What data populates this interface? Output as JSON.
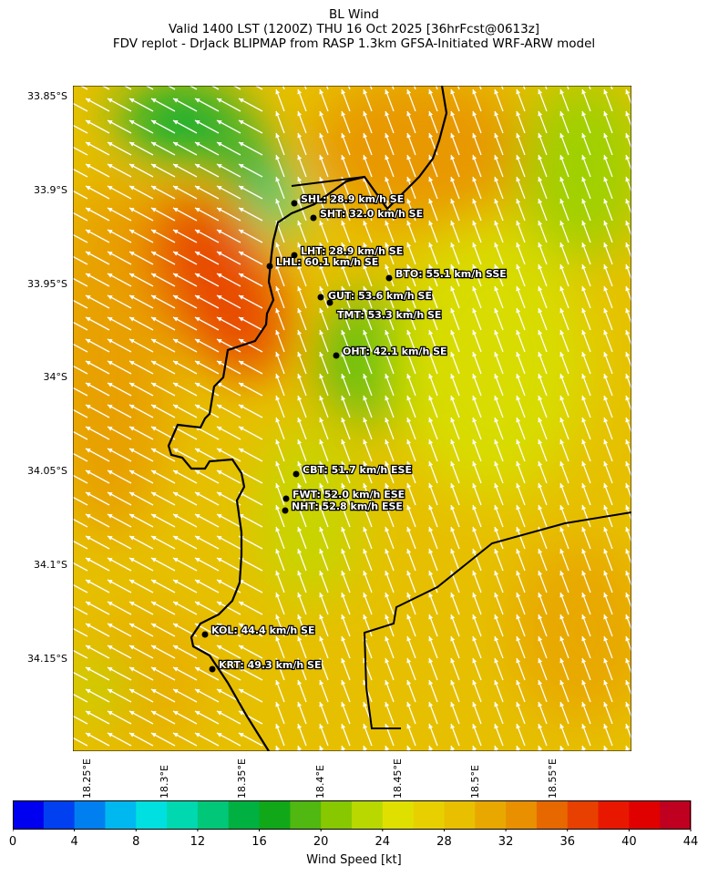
{
  "header": {
    "title": "BL Wind",
    "line2": "Valid 1400 LST (1200Z) THU 16 Oct 2025 [36hrFcst@0613z]",
    "line3": "FDV replot - DrJack BLIPMAP from RASP 1.3km GFSA-Initiated WRF-ARW model"
  },
  "map": {
    "lat_labels": [
      "33.85°S",
      "33.9°S",
      "33.95°S",
      "34°S",
      "34.05°S",
      "34.1°S",
      "34.15°S"
    ],
    "lon_labels": [
      "18.25°E",
      "18.3°E",
      "18.35°E",
      "18.4°E",
      "18.45°E",
      "18.5°E",
      "18.55°E"
    ],
    "wind_direction": "SE",
    "stations": [
      {
        "code": "SHL",
        "label": "SHL: 28.9 km/h SE"
      },
      {
        "code": "SHT",
        "label": "SHT: 32.0 km/h SE"
      },
      {
        "code": "LHT",
        "label": "LHT: 28.9 km/h SE"
      },
      {
        "code": "LHL",
        "label": "LHL: 60.1 km/h SE"
      },
      {
        "code": "BTO",
        "label": "BTO: 55.1 km/h SSE"
      },
      {
        "code": "GUT",
        "label": "GUT: 53.6 km/h SE"
      },
      {
        "code": "TMT",
        "label": "TMT: 53.3 km/h SE"
      },
      {
        "code": "OHT",
        "label": "OHT: 42.1 km/h SE"
      },
      {
        "code": "CBT",
        "label": "CBT: 51.7 km/h ESE"
      },
      {
        "code": "FWT",
        "label": "FWT: 52.0 km/h ESE"
      },
      {
        "code": "NHT",
        "label": "NHT: 52.8 km/h ESE"
      },
      {
        "code": "KOL",
        "label": "KOL: 44.4 km/h SE"
      },
      {
        "code": "KRT",
        "label": "KRT: 49.3 km/h SE"
      }
    ]
  },
  "colorbar": {
    "label": "Wind Speed [kt]",
    "ticks": [
      "0",
      "4",
      "8",
      "12",
      "16",
      "20",
      "24",
      "28",
      "32",
      "36",
      "40",
      "44"
    ],
    "range": [
      0,
      44
    ],
    "bin_step": 2,
    "colors": [
      "#0000f0",
      "#0040f0",
      "#0080f0",
      "#00b8f0",
      "#00e0e0",
      "#00d8b0",
      "#00c878",
      "#00b040",
      "#10a818",
      "#50b810",
      "#88c800",
      "#b8d800",
      "#e0e000",
      "#e8d000",
      "#e8c000",
      "#e8a800",
      "#e89000",
      "#e86800",
      "#e84000",
      "#e81800",
      "#e00000",
      "#c00020"
    ]
  }
}
